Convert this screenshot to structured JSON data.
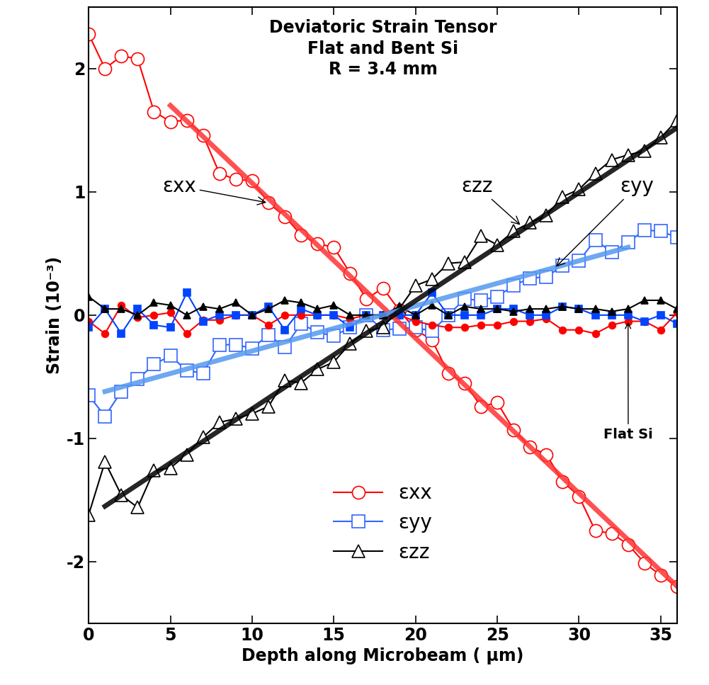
{
  "chart_data": {
    "type": "line",
    "title": "Deviatoric Strain Tensor\nFlat and Bent Si\nR = 3.4 mm",
    "x_label": "Depth along Microbeam ( μm)",
    "y_label": "Strain (10⁻³)",
    "x": [
      0,
      1,
      2,
      3,
      4,
      5,
      6,
      7,
      8,
      9,
      10,
      11,
      12,
      13,
      14,
      15,
      16,
      17,
      18,
      19,
      20,
      21,
      22,
      23,
      24,
      25,
      26,
      27,
      28,
      29,
      30,
      31,
      32,
      33,
      34,
      35,
      36
    ],
    "xlim": [
      0,
      36
    ],
    "xticks": [
      0,
      5,
      10,
      15,
      20,
      25,
      30,
      35
    ],
    "ylim": [
      -2.5,
      2.5
    ],
    "yticks": [
      -2,
      -1,
      0,
      1,
      2
    ],
    "legend": "lower center",
    "annotations": [
      {
        "text": "εxx"
      },
      {
        "text": "εzz"
      },
      {
        "text": "εyy"
      },
      {
        "text": "Flat Si"
      }
    ],
    "series": [
      {
        "name": "εxx",
        "color": "#ff0000",
        "marker": "open_circle",
        "line_style": "solid",
        "values": [
          2.28,
          2.0,
          2.1,
          2.08,
          1.65,
          1.57,
          1.58,
          1.46,
          1.15,
          1.1,
          1.09,
          0.91,
          0.8,
          0.65,
          0.58,
          0.55,
          0.34,
          0.13,
          0.22,
          0.04,
          -0.12,
          -0.2,
          -0.47,
          -0.55,
          -0.74,
          -0.71,
          -0.93,
          -1.07,
          -1.13,
          -1.35,
          -1.47,
          -1.75,
          -1.77,
          -1.86,
          -2.01,
          -2.11,
          -2.2
        ]
      },
      {
        "name": "εyy",
        "color": "#3366ff",
        "marker": "open_square",
        "line_style": "solid",
        "values": [
          -0.65,
          -0.82,
          -0.62,
          -0.52,
          -0.4,
          -0.33,
          -0.45,
          -0.47,
          -0.24,
          -0.24,
          -0.27,
          -0.16,
          -0.26,
          -0.07,
          -0.14,
          -0.17,
          -0.1,
          0.0,
          -0.12,
          -0.11,
          -0.1,
          -0.13,
          0.0,
          0.13,
          0.12,
          0.15,
          0.24,
          0.3,
          0.31,
          0.4,
          0.44,
          0.61,
          0.51,
          0.59,
          0.69,
          0.68,
          0.63
        ]
      },
      {
        "name": "εzz",
        "color": "#000000",
        "marker": "open_triangle",
        "line_style": "solid",
        "values": [
          -1.62,
          -1.19,
          -1.46,
          -1.56,
          -1.26,
          -1.24,
          -1.13,
          -0.99,
          -0.87,
          -0.84,
          -0.8,
          -0.74,
          -0.53,
          -0.55,
          -0.44,
          -0.38,
          -0.23,
          -0.13,
          -0.1,
          0.05,
          0.24,
          0.29,
          0.42,
          0.43,
          0.64,
          0.57,
          0.68,
          0.75,
          0.81,
          0.96,
          1.02,
          1.15,
          1.26,
          1.3,
          1.33,
          1.44,
          1.58
        ]
      },
      {
        "color": "#ff0000",
        "marker": "filled_circle",
        "line_style": "solid",
        "values": [
          -0.05,
          -0.15,
          0.08,
          -0.02,
          0.0,
          0.02,
          -0.15,
          -0.04,
          -0.04,
          0.0,
          0.0,
          -0.08,
          0.0,
          0.0,
          0.0,
          0.0,
          -0.03,
          0.0,
          0.0,
          0.0,
          -0.05,
          -0.08,
          -0.1,
          -0.1,
          -0.08,
          -0.08,
          -0.05,
          -0.05,
          -0.03,
          -0.12,
          -0.12,
          -0.15,
          -0.08,
          -0.05,
          -0.05,
          -0.12,
          0.02
        ]
      },
      {
        "color": "#0044ff",
        "marker": "filled_square",
        "line_style": "solid",
        "values": [
          -0.1,
          0.05,
          -0.15,
          0.05,
          -0.08,
          -0.1,
          0.18,
          -0.05,
          0.0,
          0.0,
          0.0,
          0.07,
          -0.12,
          0.05,
          0.0,
          0.0,
          -0.1,
          0.0,
          0.0,
          0.0,
          0.0,
          0.18,
          0.0,
          0.0,
          0.0,
          0.05,
          0.05,
          0.0,
          0.0,
          0.07,
          0.05,
          0.0,
          0.0,
          0.0,
          -0.05,
          0.0,
          -0.07
        ]
      },
      {
        "color": "#000000",
        "marker": "filled_triangle",
        "line_style": "solid",
        "values": [
          0.15,
          0.05,
          0.05,
          0.0,
          0.1,
          0.08,
          0.0,
          0.07,
          0.05,
          0.1,
          0.0,
          0.05,
          0.12,
          0.1,
          0.05,
          0.08,
          0.0,
          0.0,
          0.0,
          0.07,
          0.0,
          0.08,
          0.0,
          0.07,
          0.05,
          0.05,
          0.03,
          0.05,
          0.05,
          0.07,
          0.05,
          0.05,
          0.03,
          0.05,
          0.12,
          0.12,
          0.05
        ]
      },
      {
        "color": "#ff3333",
        "marker": "none",
        "line_style": "thick",
        "x": [
          5,
          36
        ],
        "values": [
          1.7,
          -2.2
        ]
      },
      {
        "color": "#5599ee",
        "marker": "none",
        "line_style": "thick",
        "x": [
          1,
          33
        ],
        "values": [
          -0.62,
          0.55
        ]
      },
      {
        "color": "#000000",
        "marker": "none",
        "line_style": "thick",
        "x": [
          1,
          36
        ],
        "values": [
          -1.55,
          1.52
        ]
      }
    ]
  }
}
